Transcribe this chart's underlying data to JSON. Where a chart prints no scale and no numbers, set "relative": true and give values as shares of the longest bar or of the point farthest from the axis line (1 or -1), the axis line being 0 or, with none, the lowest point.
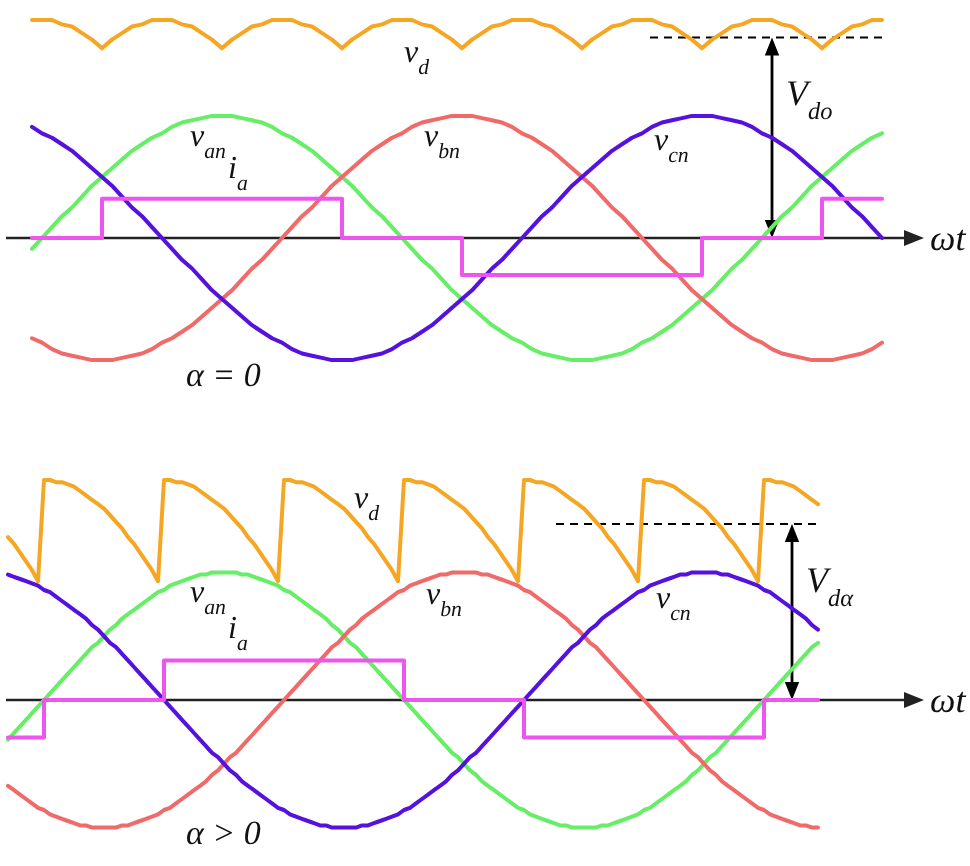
{
  "chart_data": [
    {
      "type": "line",
      "relative": true,
      "xlabel": "ωt",
      "annotations": [
        "α = 0"
      ],
      "ref_lines": [
        {
          "axis": "y",
          "value": 0.92,
          "label": "V$_{do}$",
          "color": "#000000",
          "line_style": "dashed"
        }
      ],
      "categories": [
        null,
        null,
        null,
        null,
        null,
        null,
        null,
        null,
        null,
        null,
        null,
        null,
        null,
        null,
        null,
        null,
        null,
        null,
        null,
        null,
        null,
        null,
        null,
        null,
        null,
        null,
        null,
        null,
        null,
        null,
        null,
        null,
        null,
        null,
        null,
        null,
        null,
        null,
        null,
        null,
        null,
        null,
        null,
        null,
        null,
        null,
        null,
        null,
        null,
        null,
        null,
        null,
        null,
        null,
        null,
        null,
        null,
        null,
        null,
        null,
        null,
        null,
        null,
        null,
        null,
        null,
        null,
        null,
        null,
        null,
        null,
        null,
        null,
        null,
        null,
        null,
        null,
        null,
        null,
        null,
        null,
        null,
        null,
        null,
        null,
        null
      ],
      "series": [
        {
          "name": "v$_{d}$",
          "color": "#f5a623",
          "values": [
            1,
            1,
            1,
            0.98,
            0.97,
            0.94,
            0.91,
            0.87,
            0.91,
            0.94,
            0.97,
            0.98,
            1,
            1,
            1,
            0.98,
            0.97,
            0.94,
            0.91,
            0.87,
            0.91,
            0.94,
            0.97,
            0.98,
            1,
            1,
            1,
            0.98,
            0.97,
            0.94,
            0.91,
            0.87,
            0.91,
            0.94,
            0.97,
            0.98,
            1,
            1,
            1,
            0.98,
            0.97,
            0.94,
            0.91,
            0.87,
            0.91,
            0.94,
            0.97,
            0.98,
            1,
            1,
            1,
            0.98,
            0.97,
            0.94,
            0.91,
            0.87,
            0.91,
            0.94,
            0.97,
            0.98,
            1,
            1,
            1,
            0.98,
            0.97,
            0.94,
            0.91,
            0.87,
            0.91,
            0.94,
            0.97,
            0.98,
            1,
            1,
            1,
            0.98,
            0.97,
            0.94,
            0.91,
            0.87,
            0.91,
            0.94,
            0.97,
            0.98,
            1,
            1
          ]
        },
        {
          "name": "v$_{an}$",
          "color": "#66ee66",
          "values": [
            -0.05,
            0,
            0.05,
            0.1,
            0.14,
            0.19,
            0.24,
            0.28,
            0.32,
            0.36,
            0.4,
            0.43,
            0.46,
            0.48,
            0.51,
            0.53,
            0.54,
            0.55,
            0.56,
            0.56,
            0.56,
            0.55,
            0.54,
            0.53,
            0.51,
            0.48,
            0.46,
            0.43,
            0.4,
            0.36,
            0.32,
            0.28,
            0.24,
            0.19,
            0.14,
            0.1,
            0.05,
            0,
            -0.05,
            -0.1,
            -0.14,
            -0.19,
            -0.24,
            -0.28,
            -0.32,
            -0.36,
            -0.4,
            -0.43,
            -0.46,
            -0.48,
            -0.51,
            -0.53,
            -0.54,
            -0.55,
            -0.56,
            -0.56,
            -0.56,
            -0.55,
            -0.54,
            -0.53,
            -0.51,
            -0.48,
            -0.46,
            -0.43,
            -0.4,
            -0.36,
            -0.32,
            -0.28,
            -0.24,
            -0.19,
            -0.14,
            -0.1,
            -0.05,
            0,
            0.05,
            0.1,
            0.14,
            0.19,
            0.24,
            0.28,
            0.32,
            0.36,
            0.4,
            0.43,
            0.46,
            0.48
          ]
        },
        {
          "name": "v$_{bn}$",
          "color": "#f06a6a",
          "values": [
            -0.46,
            -0.48,
            -0.51,
            -0.53,
            -0.54,
            -0.55,
            -0.56,
            -0.56,
            -0.56,
            -0.55,
            -0.54,
            -0.53,
            -0.51,
            -0.48,
            -0.46,
            -0.43,
            -0.4,
            -0.36,
            -0.32,
            -0.28,
            -0.24,
            -0.19,
            -0.14,
            -0.1,
            -0.05,
            0,
            0.05,
            0.1,
            0.14,
            0.19,
            0.24,
            0.28,
            0.32,
            0.36,
            0.4,
            0.43,
            0.46,
            0.48,
            0.51,
            0.53,
            0.54,
            0.55,
            0.56,
            0.56,
            0.56,
            0.55,
            0.54,
            0.53,
            0.51,
            0.48,
            0.46,
            0.43,
            0.4,
            0.36,
            0.32,
            0.28,
            0.24,
            0.19,
            0.14,
            0.1,
            0.05,
            0,
            -0.05,
            -0.1,
            -0.14,
            -0.19,
            -0.24,
            -0.28,
            -0.32,
            -0.36,
            -0.4,
            -0.43,
            -0.46,
            -0.48,
            -0.51,
            -0.53,
            -0.54,
            -0.55,
            -0.56,
            -0.56,
            -0.56,
            -0.55,
            -0.54,
            -0.53,
            -0.51,
            -0.48
          ]
        },
        {
          "name": "v$_{cn}$",
          "color": "#5511dd",
          "values": [
            0.51,
            0.48,
            0.46,
            0.43,
            0.4,
            0.36,
            0.32,
            0.28,
            0.24,
            0.19,
            0.14,
            0.1,
            0.05,
            0,
            -0.05,
            -0.1,
            -0.14,
            -0.19,
            -0.24,
            -0.28,
            -0.32,
            -0.36,
            -0.4,
            -0.43,
            -0.46,
            -0.48,
            -0.51,
            -0.53,
            -0.54,
            -0.55,
            -0.56,
            -0.56,
            -0.56,
            -0.55,
            -0.54,
            -0.53,
            -0.51,
            -0.48,
            -0.46,
            -0.43,
            -0.4,
            -0.36,
            -0.32,
            -0.28,
            -0.24,
            -0.19,
            -0.14,
            -0.1,
            -0.05,
            0,
            0.05,
            0.1,
            0.14,
            0.19,
            0.24,
            0.28,
            0.32,
            0.36,
            0.4,
            0.43,
            0.46,
            0.48,
            0.51,
            0.53,
            0.54,
            0.55,
            0.56,
            0.56,
            0.56,
            0.55,
            0.54,
            0.53,
            0.51,
            0.48,
            0.46,
            0.43,
            0.4,
            0.36,
            0.32,
            0.28,
            0.24,
            0.19,
            0.14,
            0.1,
            0.05,
            0
          ]
        },
        {
          "name": "i$_{a}$",
          "type": "step",
          "color": "#ee55ee",
          "values": [
            0,
            0,
            0,
            0,
            0,
            0,
            0,
            0.18,
            0.18,
            0.18,
            0.18,
            0.18,
            0.18,
            0.18,
            0.18,
            0.18,
            0.18,
            0.18,
            0.18,
            0.18,
            0.18,
            0.18,
            0.18,
            0.18,
            0.18,
            0.18,
            0.18,
            0.18,
            0.18,
            0.18,
            0.18,
            0,
            0,
            0,
            0,
            0,
            0,
            0,
            0,
            0,
            0,
            0,
            0,
            -0.17,
            -0.17,
            -0.17,
            -0.17,
            -0.17,
            -0.17,
            -0.17,
            -0.17,
            -0.17,
            -0.17,
            -0.17,
            -0.17,
            -0.17,
            -0.17,
            -0.17,
            -0.17,
            -0.17,
            -0.17,
            -0.17,
            -0.17,
            -0.17,
            -0.17,
            -0.17,
            -0.17,
            0,
            0,
            0,
            0,
            0,
            0,
            0,
            0,
            0,
            0,
            0,
            0,
            0.18,
            0.18,
            0.18,
            0.18,
            0.18,
            0.18,
            0.18
          ]
        }
      ]
    },
    {
      "type": "line",
      "relative": true,
      "xlabel": "ωt",
      "annotations": [
        "α > 0"
      ],
      "ref_lines": [
        {
          "axis": "y",
          "value": 0.8,
          "label": "V$_{dα}$",
          "color": "#000000",
          "line_style": "dashed"
        }
      ],
      "categories": [
        null,
        null,
        null,
        null,
        null,
        null,
        null,
        null,
        null,
        null,
        null,
        null,
        null,
        null,
        null,
        null,
        null,
        null,
        null,
        null,
        null,
        null,
        null,
        null,
        null,
        null,
        null,
        null,
        null,
        null,
        null,
        null,
        null,
        null,
        null,
        null,
        null,
        null,
        null,
        null,
        null,
        null,
        null,
        null,
        null,
        null,
        null,
        null,
        null,
        null,
        null,
        null,
        null,
        null,
        null,
        null,
        null,
        null,
        null,
        null,
        null,
        null,
        null,
        null,
        null,
        null,
        null,
        null,
        null,
        null,
        null,
        null,
        null,
        null,
        null,
        null,
        null,
        null,
        null,
        null,
        null,
        null,
        null,
        null,
        null,
        null,
        null,
        null,
        null,
        null,
        null,
        null,
        null,
        null,
        null,
        null,
        null,
        null,
        null,
        null,
        null,
        null,
        null,
        null,
        null,
        null,
        null,
        null,
        null,
        null,
        null,
        null,
        null,
        null,
        null,
        null,
        null,
        null,
        null,
        null,
        null,
        null,
        null,
        null,
        null,
        null,
        null,
        null,
        null,
        null,
        null,
        null,
        null,
        null,
        null,
        null
      ],
      "series": [
        {
          "name": "v$_{d}$",
          "color": "#f5a623",
          "values": [
            0.74,
            0.71,
            0.67,
            0.63,
            0.59,
            0.54,
            1,
            1,
            0.99,
            0.99,
            0.98,
            0.97,
            0.95,
            0.93,
            0.91,
            0.89,
            0.87,
            0.84,
            0.81,
            0.78,
            0.74,
            0.71,
            0.67,
            0.63,
            0.59,
            0.54,
            1,
            1,
            0.99,
            0.99,
            0.98,
            0.97,
            0.95,
            0.93,
            0.91,
            0.89,
            0.87,
            0.84,
            0.81,
            0.78,
            0.74,
            0.71,
            0.67,
            0.63,
            0.59,
            0.54,
            1,
            1,
            0.99,
            0.99,
            0.98,
            0.97,
            0.95,
            0.93,
            0.91,
            0.89,
            0.87,
            0.84,
            0.81,
            0.78,
            0.74,
            0.71,
            0.67,
            0.63,
            0.59,
            0.54,
            1,
            1,
            0.99,
            0.99,
            0.98,
            0.97,
            0.95,
            0.93,
            0.91,
            0.89,
            0.87,
            0.84,
            0.81,
            0.78,
            0.74,
            0.71,
            0.67,
            0.63,
            0.59,
            0.54,
            1,
            1,
            0.99,
            0.99,
            0.98,
            0.97,
            0.95,
            0.93,
            0.91,
            0.89,
            0.87,
            0.84,
            0.81,
            0.78,
            0.74,
            0.71,
            0.67,
            0.63,
            0.59,
            0.54,
            1,
            1,
            0.99,
            0.99,
            0.98,
            0.97,
            0.95,
            0.93,
            0.91,
            0.89,
            0.87,
            0.84,
            0.81,
            0.78,
            0.74,
            0.71,
            0.67,
            0.63,
            0.59,
            0.54,
            1,
            1,
            0.99,
            0.99,
            0.98,
            0.97,
            0.95,
            0.93,
            0.91,
            0.89
          ]
        },
        {
          "name": "v$_{an}$",
          "color": "#66ee66",
          "values": [
            -0.18,
            -0.15,
            -0.12,
            -0.09,
            -0.06,
            -0.03,
            0,
            0.03,
            0.06,
            0.09,
            0.12,
            0.15,
            0.18,
            0.21,
            0.24,
            0.26,
            0.29,
            0.32,
            0.34,
            0.37,
            0.39,
            0.41,
            0.43,
            0.45,
            0.47,
            0.49,
            0.5,
            0.52,
            0.53,
            0.54,
            0.55,
            0.56,
            0.57,
            0.57,
            0.58,
            0.58,
            0.58,
            0.58,
            0.58,
            0.57,
            0.57,
            0.56,
            0.55,
            0.54,
            0.53,
            0.52,
            0.5,
            0.49,
            0.47,
            0.45,
            0.43,
            0.41,
            0.39,
            0.37,
            0.34,
            0.32,
            0.29,
            0.26,
            0.24,
            0.21,
            0.18,
            0.15,
            0.12,
            0.09,
            0.06,
            0.03,
            0,
            -0.03,
            -0.06,
            -0.09,
            -0.12,
            -0.15,
            -0.18,
            -0.21,
            -0.24,
            -0.26,
            -0.29,
            -0.32,
            -0.34,
            -0.37,
            -0.39,
            -0.41,
            -0.43,
            -0.45,
            -0.47,
            -0.49,
            -0.5,
            -0.52,
            -0.53,
            -0.54,
            -0.55,
            -0.56,
            -0.57,
            -0.57,
            -0.58,
            -0.58,
            -0.58,
            -0.58,
            -0.58,
            -0.57,
            -0.57,
            -0.56,
            -0.55,
            -0.54,
            -0.53,
            -0.52,
            -0.5,
            -0.49,
            -0.47,
            -0.45,
            -0.43,
            -0.41,
            -0.39,
            -0.37,
            -0.34,
            -0.32,
            -0.29,
            -0.26,
            -0.24,
            -0.21,
            -0.18,
            -0.15,
            -0.12,
            -0.09,
            -0.06,
            -0.03,
            0,
            0.03,
            0.06,
            0.09,
            0.12,
            0.15,
            0.18,
            0.21,
            0.24,
            0.26
          ]
        },
        {
          "name": "v$_{bn}$",
          "color": "#f06a6a",
          "values": [
            -0.39,
            -0.41,
            -0.43,
            -0.45,
            -0.47,
            -0.49,
            -0.5,
            -0.52,
            -0.53,
            -0.54,
            -0.55,
            -0.56,
            -0.57,
            -0.57,
            -0.58,
            -0.58,
            -0.58,
            -0.58,
            -0.58,
            -0.57,
            -0.57,
            -0.56,
            -0.55,
            -0.54,
            -0.53,
            -0.52,
            -0.5,
            -0.49,
            -0.47,
            -0.45,
            -0.43,
            -0.41,
            -0.39,
            -0.37,
            -0.34,
            -0.32,
            -0.29,
            -0.26,
            -0.24,
            -0.21,
            -0.18,
            -0.15,
            -0.12,
            -0.09,
            -0.06,
            -0.03,
            0,
            0.03,
            0.06,
            0.09,
            0.12,
            0.15,
            0.18,
            0.21,
            0.24,
            0.26,
            0.29,
            0.32,
            0.34,
            0.37,
            0.39,
            0.41,
            0.43,
            0.45,
            0.47,
            0.49,
            0.5,
            0.52,
            0.53,
            0.54,
            0.55,
            0.56,
            0.57,
            0.57,
            0.58,
            0.58,
            0.58,
            0.58,
            0.58,
            0.57,
            0.57,
            0.56,
            0.55,
            0.54,
            0.53,
            0.52,
            0.5,
            0.49,
            0.47,
            0.45,
            0.43,
            0.41,
            0.39,
            0.37,
            0.34,
            0.32,
            0.29,
            0.26,
            0.24,
            0.21,
            0.18,
            0.15,
            0.12,
            0.09,
            0.06,
            0.03,
            0,
            -0.03,
            -0.06,
            -0.09,
            -0.12,
            -0.15,
            -0.18,
            -0.21,
            -0.24,
            -0.26,
            -0.29,
            -0.32,
            -0.34,
            -0.37,
            -0.39,
            -0.41,
            -0.43,
            -0.45,
            -0.47,
            -0.49,
            -0.5,
            -0.52,
            -0.53,
            -0.54,
            -0.55,
            -0.56,
            -0.57,
            -0.57,
            -0.58,
            -0.58
          ]
        },
        {
          "name": "v$_{cn}$",
          "color": "#5511dd",
          "values": [
            0.57,
            0.56,
            0.55,
            0.54,
            0.53,
            0.52,
            0.5,
            0.49,
            0.47,
            0.45,
            0.43,
            0.41,
            0.39,
            0.37,
            0.34,
            0.32,
            0.29,
            0.26,
            0.24,
            0.21,
            0.18,
            0.15,
            0.12,
            0.09,
            0.06,
            0.03,
            0,
            -0.03,
            -0.06,
            -0.09,
            -0.12,
            -0.15,
            -0.18,
            -0.21,
            -0.24,
            -0.26,
            -0.29,
            -0.32,
            -0.34,
            -0.37,
            -0.39,
            -0.41,
            -0.43,
            -0.45,
            -0.47,
            -0.49,
            -0.5,
            -0.52,
            -0.53,
            -0.54,
            -0.55,
            -0.56,
            -0.57,
            -0.57,
            -0.58,
            -0.58,
            -0.58,
            -0.58,
            -0.58,
            -0.57,
            -0.57,
            -0.56,
            -0.55,
            -0.54,
            -0.53,
            -0.52,
            -0.5,
            -0.49,
            -0.47,
            -0.45,
            -0.43,
            -0.41,
            -0.39,
            -0.37,
            -0.34,
            -0.32,
            -0.29,
            -0.26,
            -0.24,
            -0.21,
            -0.18,
            -0.15,
            -0.12,
            -0.09,
            -0.06,
            -0.03,
            0,
            0.03,
            0.06,
            0.09,
            0.12,
            0.15,
            0.18,
            0.21,
            0.24,
            0.26,
            0.29,
            0.32,
            0.34,
            0.37,
            0.39,
            0.41,
            0.43,
            0.45,
            0.47,
            0.49,
            0.5,
            0.52,
            0.53,
            0.54,
            0.55,
            0.56,
            0.57,
            0.57,
            0.58,
            0.58,
            0.58,
            0.58,
            0.58,
            0.57,
            0.57,
            0.56,
            0.55,
            0.54,
            0.53,
            0.52,
            0.5,
            0.49,
            0.47,
            0.45,
            0.43,
            0.41,
            0.39,
            0.37,
            0.34,
            0.32
          ]
        },
        {
          "name": "i$_{a}$",
          "type": "step",
          "color": "#ee55ee",
          "values": [
            -0.17,
            -0.17,
            -0.17,
            -0.17,
            -0.17,
            -0.17,
            0,
            0,
            0,
            0,
            0,
            0,
            0,
            0,
            0,
            0,
            0,
            0,
            0,
            0,
            0,
            0,
            0,
            0,
            0,
            0,
            0.18,
            0.18,
            0.18,
            0.18,
            0.18,
            0.18,
            0.18,
            0.18,
            0.18,
            0.18,
            0.18,
            0.18,
            0.18,
            0.18,
            0.18,
            0.18,
            0.18,
            0.18,
            0.18,
            0.18,
            0.18,
            0.18,
            0.18,
            0.18,
            0.18,
            0.18,
            0.18,
            0.18,
            0.18,
            0.18,
            0.18,
            0.18,
            0.18,
            0.18,
            0.18,
            0.18,
            0.18,
            0.18,
            0.18,
            0.18,
            0,
            0,
            0,
            0,
            0,
            0,
            0,
            0,
            0,
            0,
            0,
            0,
            0,
            0,
            0,
            0,
            0,
            0,
            0,
            0,
            -0.17,
            -0.17,
            -0.17,
            -0.17,
            -0.17,
            -0.17,
            -0.17,
            -0.17,
            -0.17,
            -0.17,
            -0.17,
            -0.17,
            -0.17,
            -0.17,
            -0.17,
            -0.17,
            -0.17,
            -0.17,
            -0.17,
            -0.17,
            -0.17,
            -0.17,
            -0.17,
            -0.17,
            -0.17,
            -0.17,
            -0.17,
            -0.17,
            -0.17,
            -0.17,
            -0.17,
            -0.17,
            -0.17,
            -0.17,
            -0.17,
            -0.17,
            -0.17,
            -0.17,
            -0.17,
            -0.17,
            0,
            0,
            0,
            0,
            0,
            0,
            0,
            0,
            0,
            0
          ]
        }
      ]
    }
  ]
}
